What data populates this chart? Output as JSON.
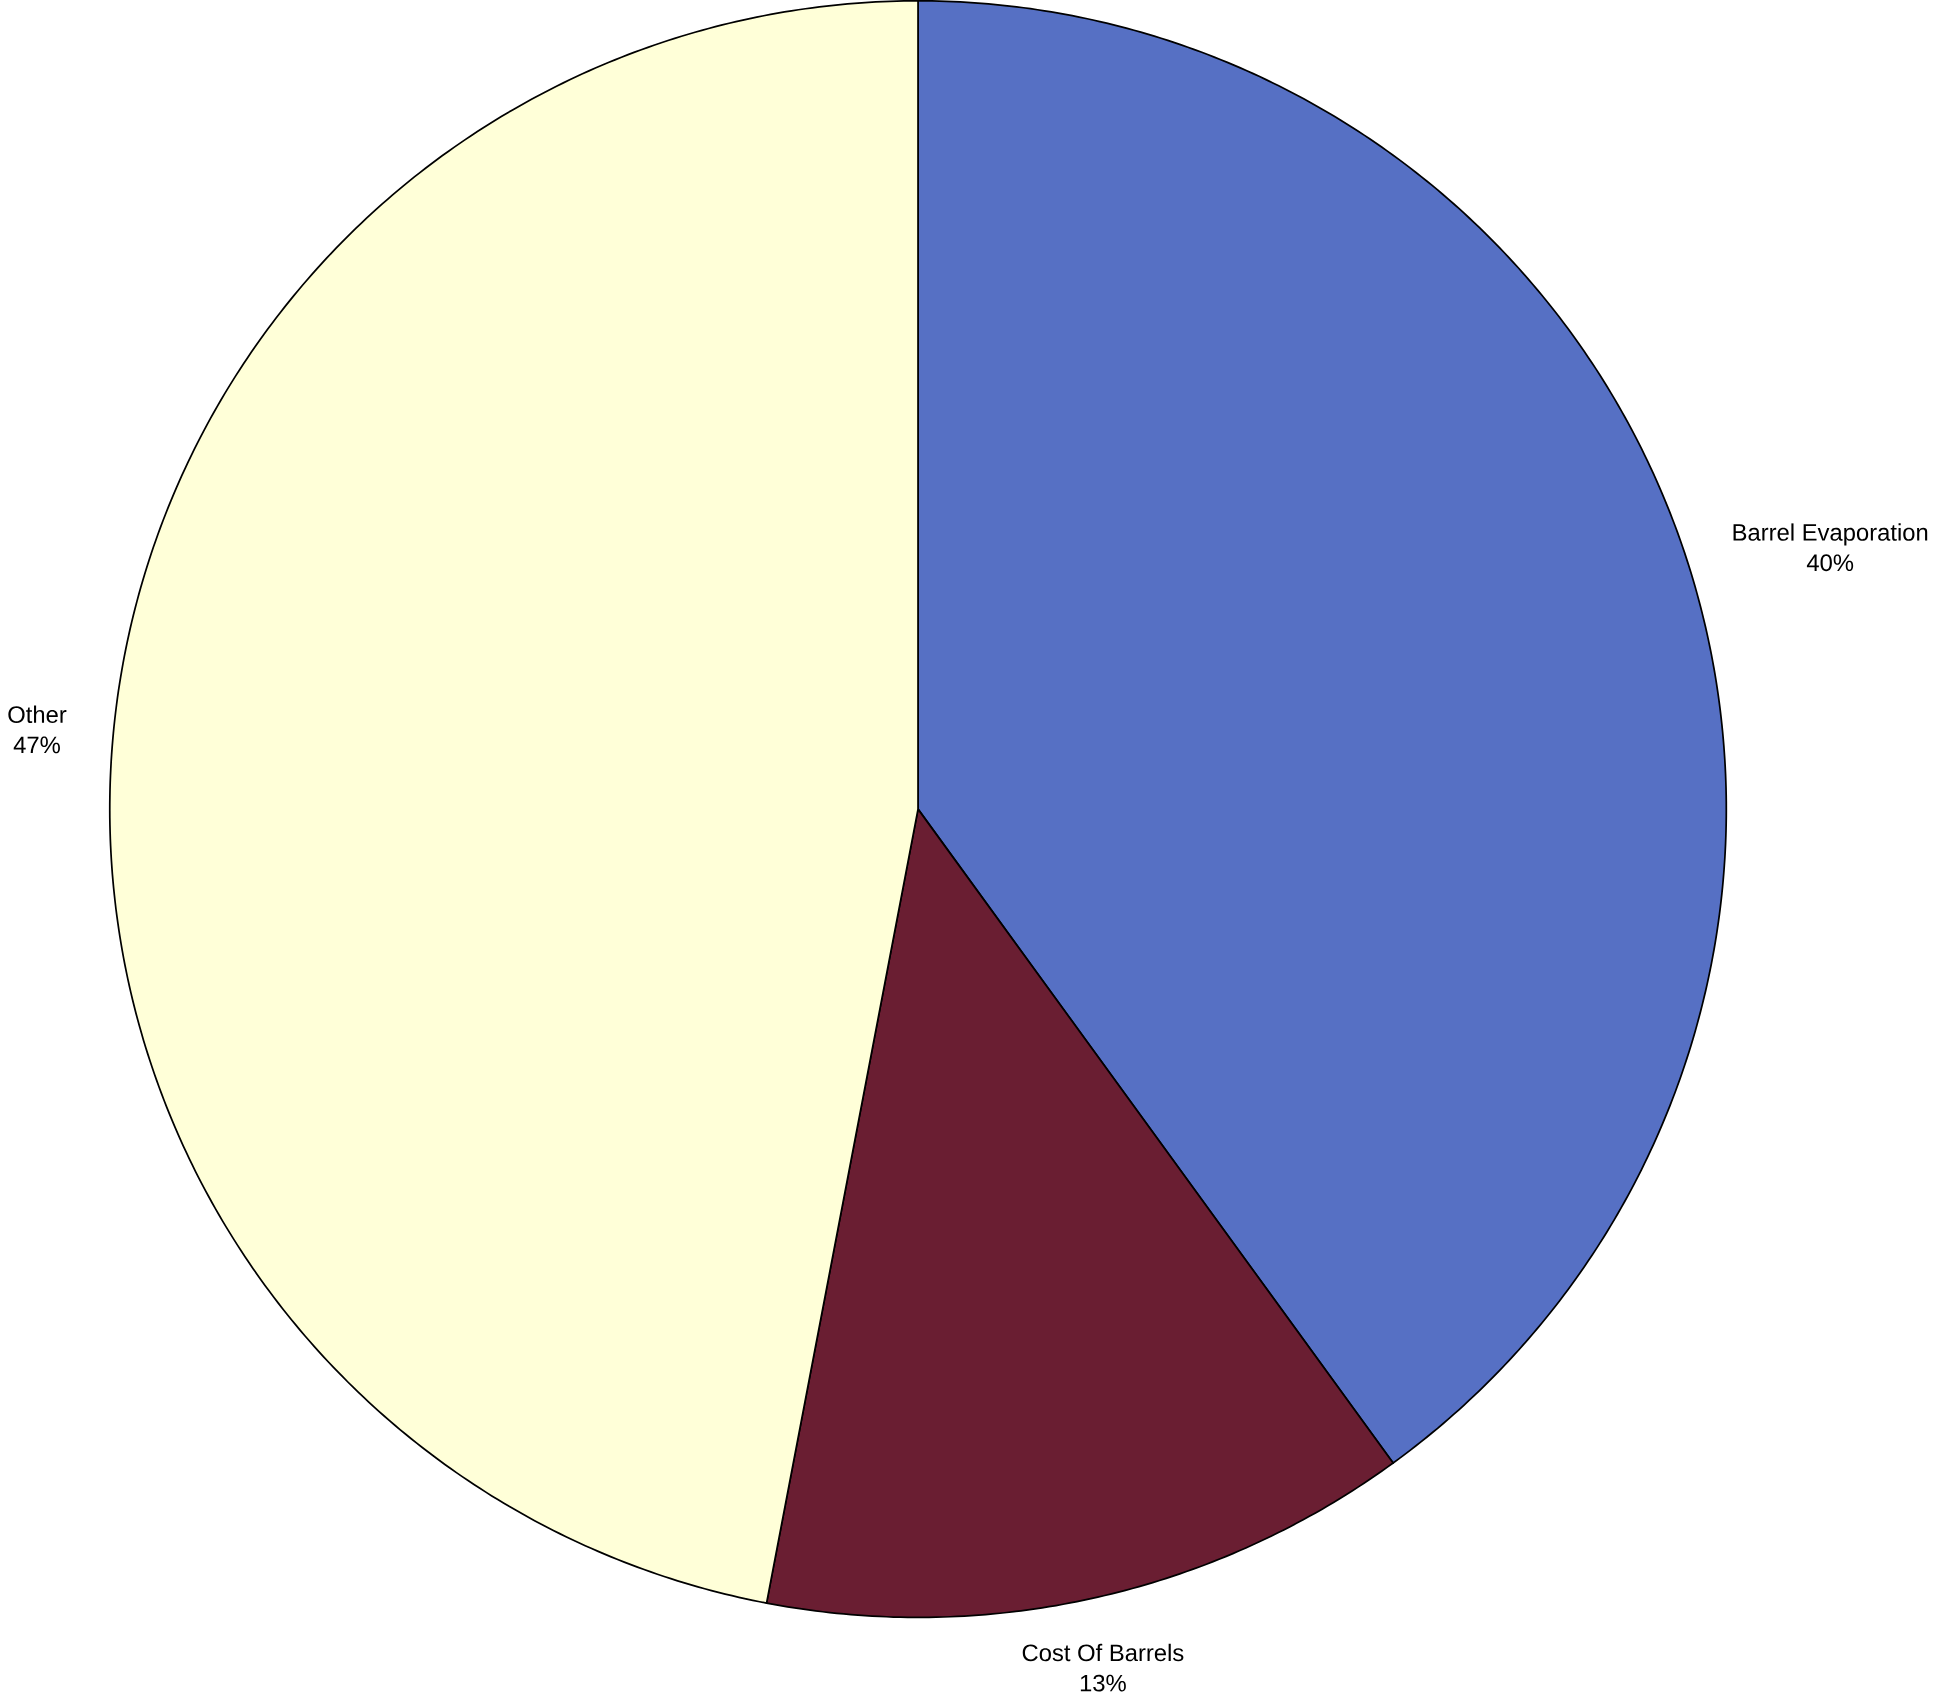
{
  "chart_data": {
    "type": "pie",
    "categories": [
      "Barrel Evaporation",
      "Cost Of Barrels",
      "Other"
    ],
    "values": [
      40,
      13,
      47
    ],
    "value_labels": [
      "40%",
      "13%",
      "47%"
    ],
    "colors": [
      "#5670c4",
      "#6a1e32",
      "#ffffd8"
    ]
  }
}
